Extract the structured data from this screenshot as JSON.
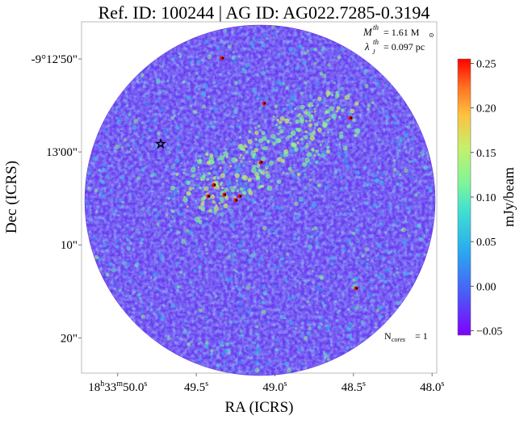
{
  "chart_data": {
    "type": "heatmap",
    "title": "Ref. ID: 100244 | AG ID: AG022.7285-0.3194",
    "xlabel": "RA (ICRS)",
    "ylabel": "Dec (ICRS)",
    "x_ticks": [
      {
        "h": "18",
        "m": "33",
        "s": "50.0",
        "value_s": 50.0
      },
      {
        "s": "49.5",
        "value_s": 49.5
      },
      {
        "s": "49.0",
        "value_s": 49.0
      },
      {
        "s": "48.5",
        "value_s": 48.5
      },
      {
        "s": "48.0",
        "value_s": 48.0
      }
    ],
    "x_range_s": [
      50.23,
      47.97
    ],
    "y_ticks": [
      {
        "label": "-9°12'50\"",
        "value_arcsec": -52370
      },
      {
        "label": "13'00\"",
        "value_arcsec": -52380
      },
      {
        "label": "10\"",
        "value_arcsec": -52390
      },
      {
        "label": "20\"",
        "value_arcsec": -52400
      }
    ],
    "y_range_arcsec": [
      -52403.8,
      -52366.0
    ],
    "colorbar": {
      "label": "mJy/beam",
      "ticks": [
        "0.25",
        "0.20",
        "0.15",
        "0.10",
        "0.05",
        "0.00",
        "−0.05"
      ],
      "tick_values": [
        0.25,
        0.2,
        0.15,
        0.1,
        0.05,
        0.0,
        -0.05
      ],
      "range": [
        -0.055,
        0.255
      ],
      "colormap": "rainbow"
    },
    "annotations": {
      "mass_label": "= 1.61 M",
      "mass_sym": "M",
      "mass_sup": "th",
      "sun_symbol": "⊙",
      "lambda_label": "= 0.097 pc",
      "lambda_sym": "λ",
      "lambda_sup": "th",
      "j_sub": "J",
      "ncores_label": "= 1",
      "ncores_sym": "N",
      "ncores_sub": "cores"
    },
    "star_marker": {
      "symbol": "star-icon"
    },
    "map_colors": {
      "background": "#6a3df0",
      "low": "#7a2fff",
      "mid": "#3aa6f0",
      "high": "#90ee90",
      "peak": "#e01010"
    }
  }
}
